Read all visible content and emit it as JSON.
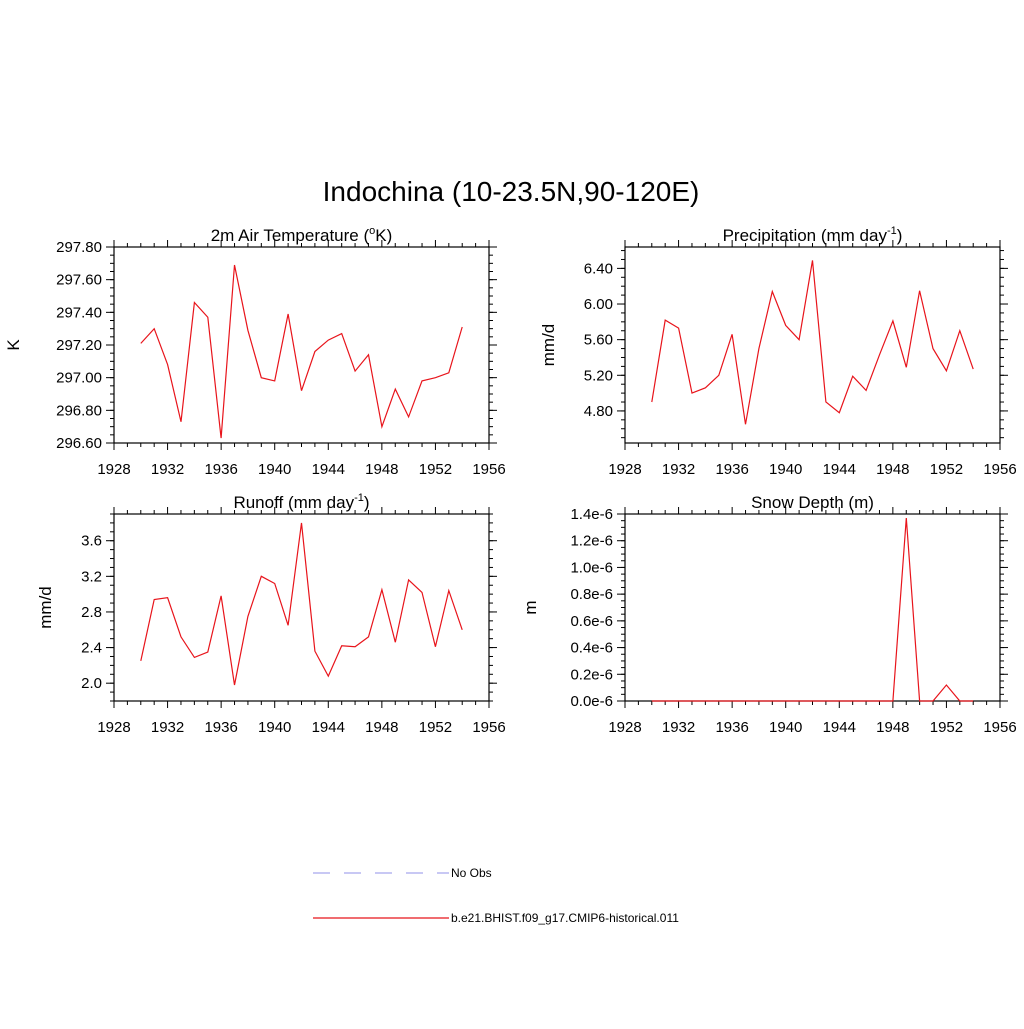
{
  "title": "Indochina (10-23.5N,90-120E)",
  "colors": {
    "model": "#e8141b",
    "obs": "#a7a7ee",
    "axis": "#000000"
  },
  "legend": [
    {
      "label": "No Obs",
      "style": "dashed",
      "color": "#a7a7ee"
    },
    {
      "label": "b.e21.BHIST.f09_g17.CMIP6-historical.011",
      "style": "solid",
      "color": "#e8141b"
    }
  ],
  "chart_data": [
    {
      "type": "line",
      "title_main": "2m Air Temperature (",
      "title_sup": "o",
      "title_end": "K)",
      "ylabel": "K",
      "xlim": [
        1928,
        1956
      ],
      "ylim": [
        296.6,
        297.8
      ],
      "xticks": [
        "1928",
        "1932",
        "1936",
        "1940",
        "1944",
        "1948",
        "1952",
        "1956"
      ],
      "yticks": [
        "296.60",
        "296.80",
        "297.00",
        "297.20",
        "297.40",
        "297.60",
        "297.80"
      ],
      "x": [
        1930,
        1931,
        1932,
        1933,
        1934,
        1935,
        1936,
        1937,
        1938,
        1939,
        1940,
        1941,
        1942,
        1943,
        1944,
        1945,
        1946,
        1947,
        1948,
        1949,
        1950,
        1951,
        1952,
        1953,
        1954
      ],
      "series": [
        {
          "name": "b.e21.BHIST.f09_g17.CMIP6-historical.011",
          "values": [
            297.21,
            297.3,
            297.08,
            296.73,
            297.46,
            297.37,
            296.63,
            297.69,
            297.29,
            297.0,
            296.98,
            297.39,
            296.92,
            297.16,
            297.23,
            297.27,
            297.04,
            297.14,
            296.7,
            296.93,
            296.76,
            296.98,
            297.0,
            297.03,
            297.31
          ]
        }
      ]
    },
    {
      "type": "line",
      "title_main": "Precipitation (mm day",
      "title_sup": "-1",
      "title_end": ")",
      "ylabel": "mm/d",
      "xlim": [
        1928,
        1956
      ],
      "ylim": [
        4.44,
        6.64
      ],
      "xticks": [
        "1928",
        "1932",
        "1936",
        "1940",
        "1944",
        "1948",
        "1952",
        "1956"
      ],
      "yticks": [
        "4.80",
        "5.20",
        "5.60",
        "6.00",
        "6.40"
      ],
      "ytick_values": [
        4.8,
        5.2,
        5.6,
        6.0,
        6.4
      ],
      "x": [
        1930,
        1931,
        1932,
        1933,
        1934,
        1935,
        1936,
        1937,
        1938,
        1939,
        1940,
        1941,
        1942,
        1943,
        1944,
        1945,
        1946,
        1947,
        1948,
        1949,
        1950,
        1951,
        1952,
        1953,
        1954
      ],
      "series": [
        {
          "name": "b.e21.BHIST.f09_g17.CMIP6-historical.011",
          "values": [
            4.9,
            5.82,
            5.73,
            5.0,
            5.06,
            5.2,
            5.66,
            4.65,
            5.5,
            6.14,
            5.76,
            5.6,
            6.49,
            4.9,
            4.78,
            5.19,
            5.03,
            5.43,
            5.81,
            5.29,
            6.15,
            5.5,
            5.25,
            5.7,
            5.27
          ]
        }
      ]
    },
    {
      "type": "line",
      "title_main": "Runoff (mm day",
      "title_sup": "-1",
      "title_end": ")",
      "ylabel": "mm/d",
      "xlim": [
        1928,
        1956
      ],
      "ylim": [
        1.8,
        3.9
      ],
      "xticks": [
        "1928",
        "1932",
        "1936",
        "1940",
        "1944",
        "1948",
        "1952",
        "1956"
      ],
      "yticks": [
        "2.0",
        "2.4",
        "2.8",
        "3.2",
        "3.6"
      ],
      "ytick_values": [
        2.0,
        2.4,
        2.8,
        3.2,
        3.6
      ],
      "x": [
        1930,
        1931,
        1932,
        1933,
        1934,
        1935,
        1936,
        1937,
        1938,
        1939,
        1940,
        1941,
        1942,
        1943,
        1944,
        1945,
        1946,
        1947,
        1948,
        1949,
        1950,
        1951,
        1952,
        1953,
        1954
      ],
      "series": [
        {
          "name": "b.e21.BHIST.f09_g17.CMIP6-historical.011",
          "values": [
            2.25,
            2.94,
            2.96,
            2.52,
            2.29,
            2.35,
            2.98,
            1.98,
            2.75,
            3.2,
            3.12,
            2.65,
            3.8,
            2.36,
            2.08,
            2.42,
            2.41,
            2.52,
            3.05,
            2.46,
            3.16,
            3.02,
            2.41,
            3.04,
            2.6
          ]
        }
      ]
    },
    {
      "type": "line",
      "title_main": "Snow Depth (m)",
      "title_sup": "",
      "title_end": "",
      "ylabel": "m",
      "xlim": [
        1928,
        1956
      ],
      "ylim": [
        0,
        1.4e-06
      ],
      "xticks": [
        "1928",
        "1932",
        "1936",
        "1940",
        "1944",
        "1948",
        "1952",
        "1956"
      ],
      "yticks": [
        "0.0e-6",
        "0.2e-6",
        "0.4e-6",
        "0.6e-6",
        "0.8e-6",
        "1.0e-6",
        "1.2e-6",
        "1.4e-6"
      ],
      "x": [
        1930,
        1931,
        1932,
        1933,
        1934,
        1935,
        1936,
        1937,
        1938,
        1939,
        1940,
        1941,
        1942,
        1943,
        1944,
        1945,
        1946,
        1947,
        1948,
        1949,
        1950,
        1951,
        1952,
        1953,
        1954
      ],
      "series": [
        {
          "name": "b.e21.BHIST.f09_g17.CMIP6-historical.011",
          "values": [
            0,
            0,
            0,
            0,
            0,
            0,
            0,
            0,
            0,
            0,
            0,
            0,
            0,
            0,
            0,
            0,
            0,
            0,
            0,
            1.37e-06,
            0,
            0,
            1.2e-07,
            0,
            0
          ]
        }
      ]
    }
  ]
}
